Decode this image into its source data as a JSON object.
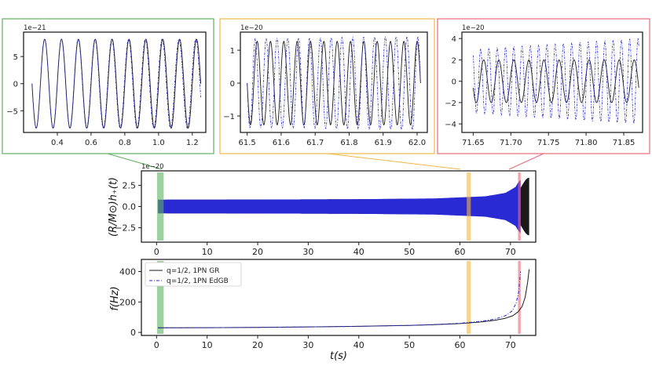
{
  "colors": {
    "gr": "#1a1a1a",
    "edgb": "#2a2ad4",
    "green": "#5fb05f",
    "orange": "#f0b84a",
    "red": "#e86a78"
  },
  "inset_border_colors": [
    "#5fb05f",
    "#f0b84a",
    "#e86a78"
  ],
  "chart_data": [
    {
      "type": "line",
      "panel": "inset-early",
      "offset_text": "1e−21",
      "xlim": [
        0.2,
        1.28
      ],
      "ylim": [
        -9,
        9.5
      ],
      "xticks": [
        0.4,
        0.6,
        0.8,
        1.0,
        1.2
      ],
      "xtick_labels": [
        "0.4",
        "0.6",
        "0.8",
        "1.0",
        "1.2"
      ],
      "yticks": [
        5,
        0,
        -5
      ],
      "ytick_labels": [
        "5",
        "0",
        "−5"
      ],
      "series": [
        {
          "style": "solid",
          "color": "gr",
          "amplitude": 8.2,
          "x_start": 0.25,
          "x_end": 1.25,
          "cycles": 10,
          "phase": 0.25
        },
        {
          "style": "dashdot",
          "color": "edgb",
          "amplitude": 8.2,
          "x_start": 0.25,
          "x_end": 1.25,
          "cycles": 10.05,
          "phase": 0.25
        }
      ]
    },
    {
      "type": "line",
      "panel": "inset-mid",
      "offset_text": "1e−20",
      "xlim": [
        61.48,
        62.03
      ],
      "ylim": [
        -1.5,
        1.55
      ],
      "xticks": [
        61.5,
        61.6,
        61.7,
        61.8,
        61.9,
        62.0
      ],
      "xtick_labels": [
        "61.5",
        "61.6",
        "61.7",
        "61.8",
        "61.9",
        "62.0"
      ],
      "yticks": [
        1,
        0,
        -1
      ],
      "ytick_labels": [
        "1",
        "0",
        "−1"
      ],
      "series": [
        {
          "style": "solid",
          "color": "gr",
          "amplitude": 1.27,
          "x_start": 61.5,
          "x_end": 62.01,
          "cycles": 13,
          "phase": 0.25
        },
        {
          "style": "dashdot",
          "color": "edgb",
          "amplitude": 1.35,
          "amplitude_end": 1.42,
          "x_start": 61.5,
          "x_end": 62.01,
          "cycles": 16,
          "phase": 0.25
        }
      ]
    },
    {
      "type": "line",
      "panel": "inset-late",
      "offset_text": "1e−20",
      "xlim": [
        71.635,
        71.875
      ],
      "ylim": [
        -4.8,
        4.6
      ],
      "xticks": [
        71.65,
        71.7,
        71.75,
        71.8,
        71.85
      ],
      "xtick_labels": [
        "71.65",
        "71.70",
        "71.75",
        "71.80",
        "71.85"
      ],
      "yticks": [
        4,
        2,
        0,
        -2,
        -4
      ],
      "ytick_labels": [
        "4",
        "2",
        "0",
        "−2",
        "−4"
      ],
      "series": [
        {
          "style": "solid",
          "color": "gr",
          "amplitude": 2.0,
          "x_start": 71.65,
          "x_end": 71.87,
          "cycles": 11,
          "phase": 0.3
        },
        {
          "style": "dashdot",
          "color": "edgb",
          "amplitude": 3.0,
          "amplitude_end": 4.0,
          "x_start": 71.65,
          "x_end": 71.87,
          "cycles": 20,
          "phase": 0.1
        }
      ]
    },
    {
      "type": "area",
      "panel": "strain",
      "offset_text": "1e−20",
      "ylabel": "(R/M⊙)h₊(t)",
      "xlim": [
        -3,
        75
      ],
      "ylim": [
        -4.2,
        4.2
      ],
      "xticks": [
        0,
        10,
        20,
        30,
        40,
        50,
        60,
        70
      ],
      "xtick_labels": [
        "0",
        "10",
        "20",
        "30",
        "40",
        "50",
        "60",
        "70"
      ],
      "yticks": [
        2.5,
        0.0,
        -2.5
      ],
      "ytick_labels": [
        "2.5",
        "0.0",
        "−2.5"
      ],
      "envelope_gr": {
        "t": [
          0.3,
          20,
          40,
          55,
          65,
          69,
          71,
          72,
          72.6,
          73.2,
          73.7
        ],
        "amp": [
          0.8,
          0.82,
          0.86,
          0.93,
          1.1,
          1.35,
          1.7,
          2.2,
          2.8,
          3.3,
          3.4
        ]
      },
      "envelope_edgb": {
        "t": [
          0.3,
          20,
          40,
          55,
          65,
          69,
          71,
          71.6,
          72.0
        ],
        "amp": [
          0.8,
          0.82,
          0.86,
          0.95,
          1.2,
          1.6,
          2.3,
          2.9,
          3.1
        ]
      },
      "bands": [
        {
          "x": [
            0.25,
            1.25
          ],
          "color": "green"
        },
        {
          "x": [
            61.5,
            62.0
          ],
          "color": "orange"
        },
        {
          "x": [
            71.65,
            71.87
          ],
          "color": "red"
        }
      ]
    },
    {
      "type": "line",
      "panel": "frequency",
      "ylabel": "f(Hz)",
      "xlabel": "t(s)",
      "xlim": [
        -3,
        75
      ],
      "ylim": [
        -20,
        480
      ],
      "xticks": [
        0,
        10,
        20,
        30,
        40,
        50,
        60,
        70
      ],
      "xtick_labels": [
        "0",
        "10",
        "20",
        "30",
        "40",
        "50",
        "60",
        "70"
      ],
      "yticks": [
        400,
        200,
        0
      ],
      "ytick_labels": [
        "400",
        "200",
        "0"
      ],
      "legend": [
        "q=1/2, 1PN GR",
        "q=1/2, 1PN EdGB"
      ],
      "legend_position": "top-left",
      "series": [
        {
          "name": "q=1/2, 1PN GR",
          "style": "solid",
          "color": "gr",
          "x": [
            0.3,
            10,
            20,
            30,
            40,
            50,
            55,
            60,
            64,
            67,
            69,
            70.5,
            71.5,
            72.3,
            72.9,
            73.4,
            73.7
          ],
          "y": [
            30,
            31,
            33,
            36,
            40,
            46,
            51,
            58,
            68,
            80,
            93,
            110,
            135,
            170,
            230,
            330,
            415
          ]
        },
        {
          "name": "q=1/2, 1PN EdGB",
          "style": "dashdot",
          "color": "edgb",
          "x": [
            0.3,
            10,
            20,
            30,
            40,
            50,
            55,
            60,
            64,
            67,
            69,
            70.3,
            71.1,
            71.6,
            72.0
          ],
          "y": [
            30,
            31,
            33,
            36,
            40,
            46,
            52,
            60,
            72,
            88,
            110,
            140,
            190,
            260,
            400
          ]
        }
      ],
      "bands": [
        {
          "x": [
            0.25,
            1.25
          ],
          "color": "green"
        },
        {
          "x": [
            61.5,
            62.0
          ],
          "color": "orange"
        },
        {
          "x": [
            71.65,
            71.87
          ],
          "color": "red"
        }
      ]
    }
  ]
}
